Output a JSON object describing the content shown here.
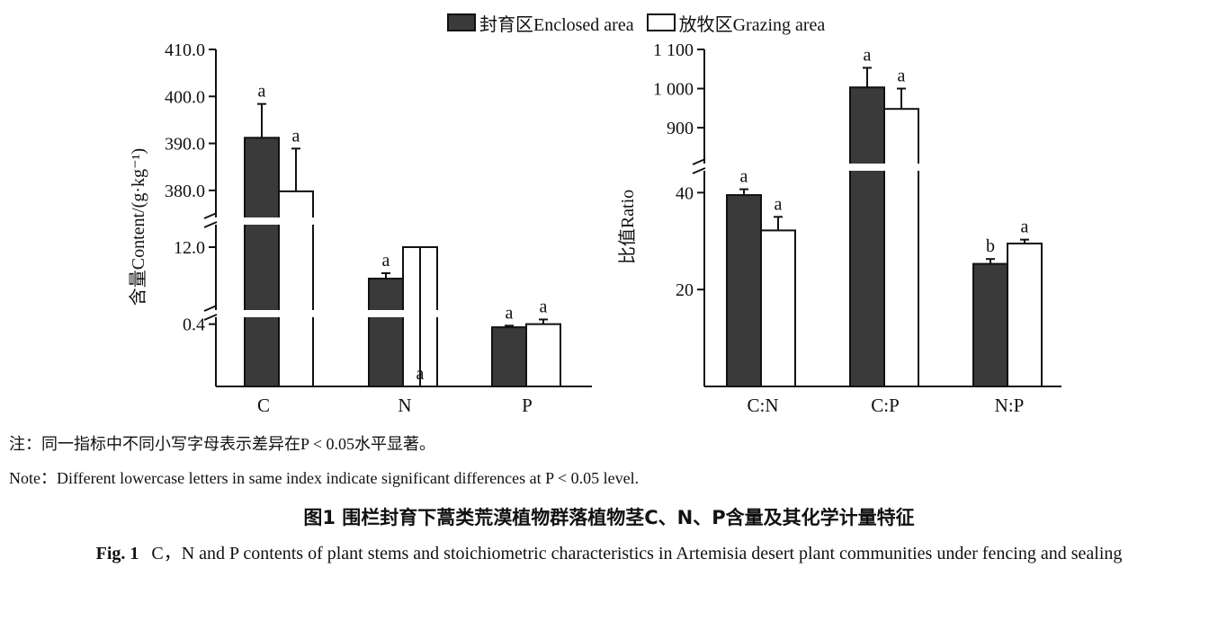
{
  "legend": {
    "enclosed_label": "封育区Enclosed area",
    "grazing_label": "放牧区Grazing area",
    "enclosed_color": "#3a3a3a",
    "grazing_color": "#ffffff"
  },
  "chart_data": [
    {
      "type": "bar",
      "ylabel": "含量Content/(g·kg⁻¹)",
      "xlabel": "",
      "categories": [
        "C",
        "N",
        "P"
      ],
      "y_ticks": [
        "410.0",
        "400.0",
        "390.0",
        "380.0",
        "12.0",
        "0.4"
      ],
      "axis_breaks": 2,
      "series": [
        {
          "name": "封育区Enclosed area",
          "values": [
            391.2,
            8.5,
            0.38
          ],
          "errors": [
            7.2,
            0.6,
            0.01
          ],
          "letters": [
            "a",
            "a",
            "a"
          ]
        },
        {
          "name": "放牧区Grazing area",
          "values": [
            379.8,
            12.0,
            0.4
          ],
          "errors": [
            9.1,
            2.3,
            0.03
          ],
          "letters": [
            "a",
            "a",
            "a"
          ]
        }
      ]
    },
    {
      "type": "bar",
      "ylabel": "比值Ratio",
      "xlabel": "",
      "categories": [
        "C:N",
        "C:P",
        "N:P"
      ],
      "y_ticks": [
        "1 100",
        "1 000",
        "900",
        "40",
        "20"
      ],
      "axis_breaks": 1,
      "series": [
        {
          "name": "封育区Enclosed area",
          "values": [
            39.5,
            1003,
            25.3
          ],
          "errors": [
            1.2,
            50,
            1.0
          ],
          "letters": [
            "a",
            "a",
            "b"
          ]
        },
        {
          "name": "放牧区Grazing area",
          "values": [
            32.2,
            948,
            29.5
          ],
          "errors": [
            2.8,
            52,
            0.8
          ],
          "letters": [
            "a",
            "a",
            "a"
          ]
        }
      ]
    }
  ],
  "captions": {
    "note_zh": "注：同一指标中不同小写字母表示差异在P < 0.05水平显著。",
    "note_en": "Note：Different lowercase letters in same index indicate significant differences at P < 0.05 level.",
    "title_zh": "图1   围栏封育下蒿类荒漠植物群落植物茎C、N、P含量及其化学计量特征",
    "title_en_label": "Fig. 1",
    "title_en_text": "C，N and P contents of plant stems and stoichiometric characteristics in Artemisia desert plant communities under fencing and sealing"
  }
}
